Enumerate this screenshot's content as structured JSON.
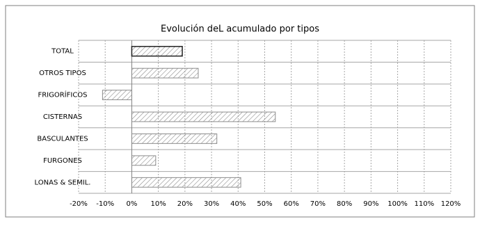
{
  "chart_data": {
    "type": "barh",
    "title": "Evolución deL acumulado por tipos",
    "categories": [
      "TOTAL",
      "OTROS TIPOS",
      "FRIGORÍFICOS",
      "CISTERNAS",
      "BASCULANTES",
      "FURGONES",
      "LONAS & SEMIL."
    ],
    "values": [
      19,
      25,
      -11,
      54,
      32,
      9,
      41
    ],
    "edge_colors": [
      "#222222",
      "#8c8c8c",
      "#8c8c8c",
      "#8c8c8c",
      "#8c8c8c",
      "#8c8c8c",
      "#8c8c8c"
    ],
    "hatch_color": "#8c8c8c",
    "xlim": [
      -20,
      120
    ],
    "xticks": [
      {
        "value": -20,
        "label": "-20%"
      },
      {
        "value": -10,
        "label": "-10%"
      },
      {
        "value": 0,
        "label": "0%"
      },
      {
        "value": 10,
        "label": "10%"
      },
      {
        "value": 20,
        "label": "20%"
      },
      {
        "value": 30,
        "label": "30%"
      },
      {
        "value": 40,
        "label": "40%"
      },
      {
        "value": 50,
        "label": "50%"
      },
      {
        "value": 60,
        "label": "60%"
      },
      {
        "value": 70,
        "label": "70%"
      },
      {
        "value": 80,
        "label": "80%"
      },
      {
        "value": 90,
        "label": "90%"
      },
      {
        "value": 100,
        "label": "100%"
      },
      {
        "value": 110,
        "label": "110%"
      },
      {
        "value": 120,
        "label": "120%"
      }
    ],
    "grid": true
  }
}
